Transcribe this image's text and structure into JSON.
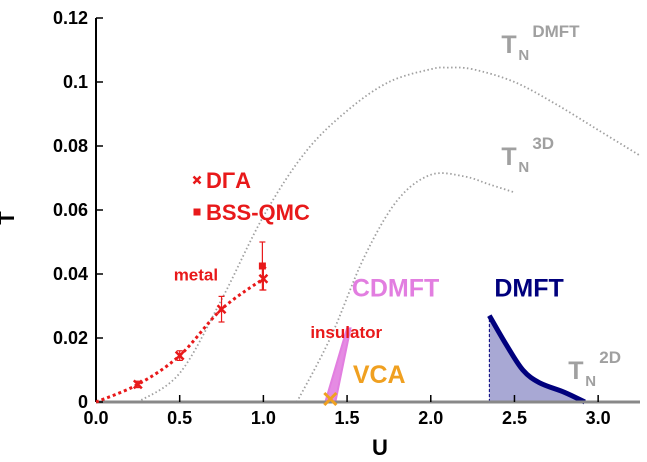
{
  "chart_data": {
    "type": "scatter",
    "xlabel": "U",
    "ylabel": "T",
    "xlim": [
      0.0,
      3.25
    ],
    "ylim": [
      0.0,
      0.12
    ],
    "x_ticks": [
      "0.0",
      "0.5",
      "1.0",
      "1.5",
      "2.0",
      "2.5",
      "3.0"
    ],
    "y_ticks": [
      "0",
      "0.02",
      "0.04",
      "0.06",
      "0.08",
      "0.1",
      "0.12"
    ],
    "grid": false,
    "legend_position": "upper-left-inside",
    "colors": {
      "dga": "#e8191a",
      "gray": "#a0a0a0",
      "cdmft": "#e27ee0",
      "vca": "#f0a020",
      "dmft": "#00007d",
      "dmft_fill": "#9999cc"
    },
    "series": [
      {
        "name": "DΓA",
        "marker": "x",
        "x": [
          0.0,
          0.25,
          0.5,
          0.75,
          1.0
        ],
        "y": [
          0.0,
          0.0055,
          0.0145,
          0.029,
          0.0385
        ],
        "yerr": [
          0,
          0.001,
          0.0015,
          0.004,
          0.0035
        ]
      },
      {
        "name": "BSS-QMC",
        "marker": "square",
        "x": [
          1.0
        ],
        "y": [
          0.0425
        ],
        "yerr": [
          0.0075
        ]
      },
      {
        "name": "T_N^DMFT",
        "style": "dotted",
        "x": [
          0.25,
          0.5,
          0.75,
          1.0,
          1.25,
          1.5,
          1.75,
          2.0,
          2.1,
          2.25,
          2.5,
          2.75,
          3.0,
          3.25
        ],
        "y": [
          0.0,
          0.009,
          0.032,
          0.058,
          0.078,
          0.091,
          0.1,
          0.104,
          0.1045,
          0.104,
          0.1,
          0.093,
          0.085,
          0.077
        ]
      },
      {
        "name": "T_N^3D",
        "style": "dotted",
        "x": [
          1.2,
          1.4,
          1.6,
          1.8,
          2.0,
          2.2,
          2.35,
          2.5
        ],
        "y": [
          0.0,
          0.02,
          0.045,
          0.063,
          0.071,
          0.0705,
          0.068,
          0.0655
        ]
      },
      {
        "name": "CDMFT",
        "region": true,
        "x": [
          1.37,
          1.5,
          1.52,
          1.43
        ],
        "y": [
          0.0,
          0.023,
          0.023,
          0.0
        ]
      },
      {
        "name": "VCA",
        "marker": "x",
        "x": [
          1.4
        ],
        "y": [
          0.0
        ]
      },
      {
        "name": "DMFT",
        "region": true,
        "x": [
          2.35,
          2.35,
          2.45,
          2.55,
          2.65,
          2.8,
          2.92
        ],
        "y": [
          0.0,
          0.027,
          0.018,
          0.01,
          0.006,
          0.003,
          0.0
        ]
      }
    ],
    "annotations": [
      {
        "text": "metal",
        "x": 0.5,
        "y": 0.038
      },
      {
        "text": "insulator",
        "x": 1.4,
        "y": 0.02
      },
      {
        "text": "CDMFT",
        "x": 1.6,
        "y": 0.033
      },
      {
        "text": "VCA",
        "x": 1.6,
        "y": 0.006
      },
      {
        "text": "DMFT",
        "x": 2.35,
        "y": 0.033
      },
      {
        "text": "T",
        "sub": "N",
        "sup": "DMFT",
        "x": 2.35,
        "y": 0.111
      },
      {
        "text": "T",
        "sub": "N",
        "sup": "3D",
        "x": 2.35,
        "y": 0.076
      },
      {
        "text": "T",
        "sub": "N",
        "sup": "2D",
        "x": 2.75,
        "y": 0.009
      }
    ],
    "legend": [
      {
        "label": "DΓA",
        "marker": "x"
      },
      {
        "label": "BSS-QMC",
        "marker": "square"
      }
    ]
  }
}
